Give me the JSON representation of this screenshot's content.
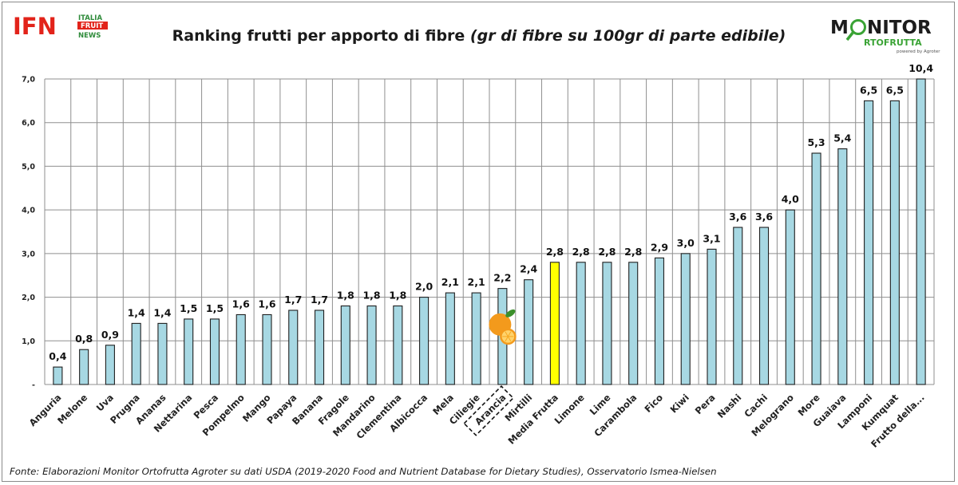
{
  "header": {
    "title_main": "Ranking frutti per apporto di fibre ",
    "title_italic": "(gr di fibre su 100gr di parte edibile)"
  },
  "logos": {
    "left": {
      "mark": "IFN",
      "line1": "ITALIA",
      "line2": "FRUIT",
      "line3": "NEWS",
      "red": "#e2231a",
      "green": "#2e8b3a"
    },
    "right": {
      "word1": "M",
      "word1_rest": "NITOR",
      "word2": "RTOFRUTTA",
      "powered": "powered by Agroter",
      "dark": "#1c1c1c",
      "green": "#3aa335"
    }
  },
  "footer": {
    "source": "Fonte: Elaborazioni Monitor Ortofrutta Agroter su dati USDA (2019-2020 Food and Nutrient Database for Dietary Studies), Osservatorio Ismea-Nielsen"
  },
  "colors": {
    "bar": "#a7d8e3",
    "bar_highlight": "#ffff00",
    "bar_stroke": "#1f1f1f",
    "grid": "#8f8f8f",
    "orange": "#f39a1c"
  },
  "chart_data": {
    "type": "bar",
    "title": "Ranking frutti per apporto di fibre (gr di fibre su 100gr di parte edibile)",
    "categories": [
      "Anguria",
      "Melone",
      "Uva",
      "Prugna",
      "Ananas",
      "Nettarina",
      "Pesca",
      "Pompelmo",
      "Mango",
      "Papaya",
      "Banana",
      "Fragole",
      "Mandarino",
      "Clementina",
      "Albicocca",
      "Mela",
      "Ciliegie",
      "Arancia",
      "Mirtilli",
      "Media Frutta",
      "Limone",
      "Lime",
      "Carambola",
      "Fico",
      "Kiwi",
      "Pera",
      "Nashi",
      "Cachi",
      "Melograno",
      "More",
      "Guaiava",
      "Lamponi",
      "Kumquat",
      "Frutto della..."
    ],
    "values": [
      0.4,
      0.8,
      0.9,
      1.4,
      1.4,
      1.5,
      1.5,
      1.6,
      1.6,
      1.7,
      1.7,
      1.8,
      1.8,
      1.8,
      2.0,
      2.1,
      2.1,
      2.2,
      2.4,
      2.8,
      2.8,
      2.8,
      2.8,
      2.9,
      3.0,
      3.1,
      3.6,
      3.6,
      4.0,
      5.3,
      5.4,
      6.5,
      6.5,
      10.4
    ],
    "value_labels": [
      "0,4",
      "0,8",
      "0,9",
      "1,4",
      "1,4",
      "1,5",
      "1,5",
      "1,6",
      "1,6",
      "1,7",
      "1,7",
      "1,8",
      "1,8",
      "1,8",
      "2,0",
      "2,1",
      "2,1",
      "2,2",
      "2,4",
      "2,8",
      "2,8",
      "2,8",
      "2,8",
      "2,9",
      "3,0",
      "3,1",
      "3,6",
      "3,6",
      "4,0",
      "5,3",
      "5,4",
      "6,5",
      "6,5",
      "10,4"
    ],
    "y_tick_labels": [
      "-",
      "1,0",
      "2,0",
      "3,0",
      "4,0",
      "5,0",
      "6,0",
      "7,0"
    ],
    "ylim": [
      0,
      7
    ],
    "highlight_category": "Media Frutta",
    "boxed_category": "Arancia",
    "xlabel": "",
    "ylabel": "",
    "grid": true,
    "legend": "none"
  }
}
